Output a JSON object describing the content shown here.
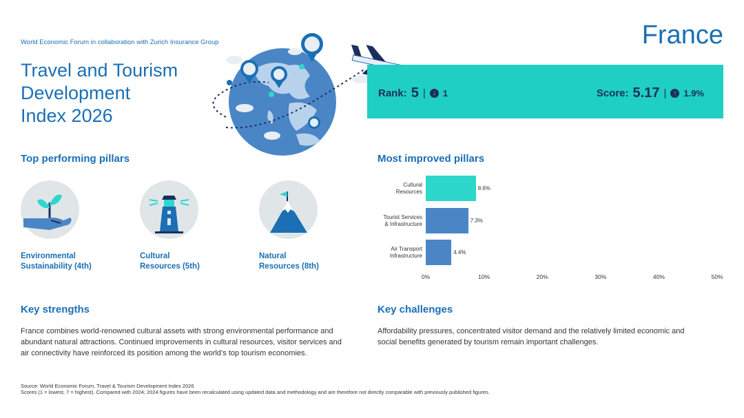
{
  "header": {
    "collab": "World Economic Forum in collaboration with Zurich Insurance Group",
    "title_line1": "Travel and Tourism",
    "title_line2": "Development",
    "title_line3": "Index 2026",
    "country": "France"
  },
  "rankbox": {
    "rank_label": "Rank:",
    "rank_value": "5",
    "sep": "|",
    "rank_change": "1",
    "rank_change_dir": "down",
    "score_label": "Score:",
    "score_value": "5.17",
    "score_change": "1.9%",
    "score_change_dir": "up",
    "color": "#1fcfc4"
  },
  "top_pillars": {
    "heading": "Top performing pillars",
    "items": [
      {
        "line1": "Environmental",
        "line2": "Sustainability (4th)",
        "icon": "plant-hand-icon"
      },
      {
        "line1": "Cultural",
        "line2": "Resources (5th)",
        "icon": "lighthouse-icon"
      },
      {
        "line1": "Natural",
        "line2": "Resources (8th)",
        "icon": "mountain-flag-icon"
      }
    ]
  },
  "chart_data": {
    "type": "bar",
    "orientation": "horizontal",
    "title": "Most improved pillars",
    "categories": [
      "Cultural Resources",
      "Tourist Services & Infrastructure",
      "Air Transport Infrastructure"
    ],
    "category_lines": [
      [
        "Cultural",
        "Resources"
      ],
      [
        "Tourist Services",
        "& Infrastructure"
      ],
      [
        "Air Transport",
        "Infrastructure"
      ]
    ],
    "values": [
      8.6,
      7.3,
      4.4
    ],
    "value_labels": [
      "8.6%",
      "7.3%",
      "4.4%"
    ],
    "colors": [
      "#2ed6cc",
      "#4a86c6",
      "#4a86c6"
    ],
    "xlim": [
      0,
      50
    ],
    "xticks": [
      "0%",
      "10%",
      "20%",
      "30%",
      "40%",
      "50%"
    ],
    "xtick_values": [
      0,
      10,
      20,
      30,
      40,
      50
    ],
    "grid": false
  },
  "strengths": {
    "heading": "Key strengths",
    "line1": "France combines world-renowned cultural assets with strong environmental performance and",
    "line2": "abundant natural attractions. Continued improvements in cultural resources, visitor services and",
    "line3": "air connectivity have reinforced its position among the world’s top tourism economies."
  },
  "challenges": {
    "heading": "Key challenges",
    "line1": "Affordability pressures, concentrated visitor demand and the relatively limited economic and",
    "line2": "social benefits generated by tourism remain important challenges."
  },
  "footer": {
    "source": "Source: World Economic Forum, Travel & Tourism Development Index 2026",
    "note": "Scores (1 = lowest, 7 = highest). Compared with 2024; 2024 figures have been recalculated using updated data and methodology and are therefore not directly comparable with previously published figures."
  }
}
